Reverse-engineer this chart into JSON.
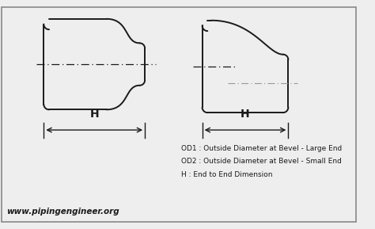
{
  "bg_color": "#eeeeee",
  "line_color": "#1a1a1a",
  "text_color": "#1a1a1a",
  "legend_lines": [
    "OD1 : Outside Diameter at Bevel - Large End",
    "OD2 : Outside Diameter at Bevel - Small End",
    "H : End to End Dimension"
  ],
  "website": "www.pipingengineer.org",
  "h_label": "H"
}
